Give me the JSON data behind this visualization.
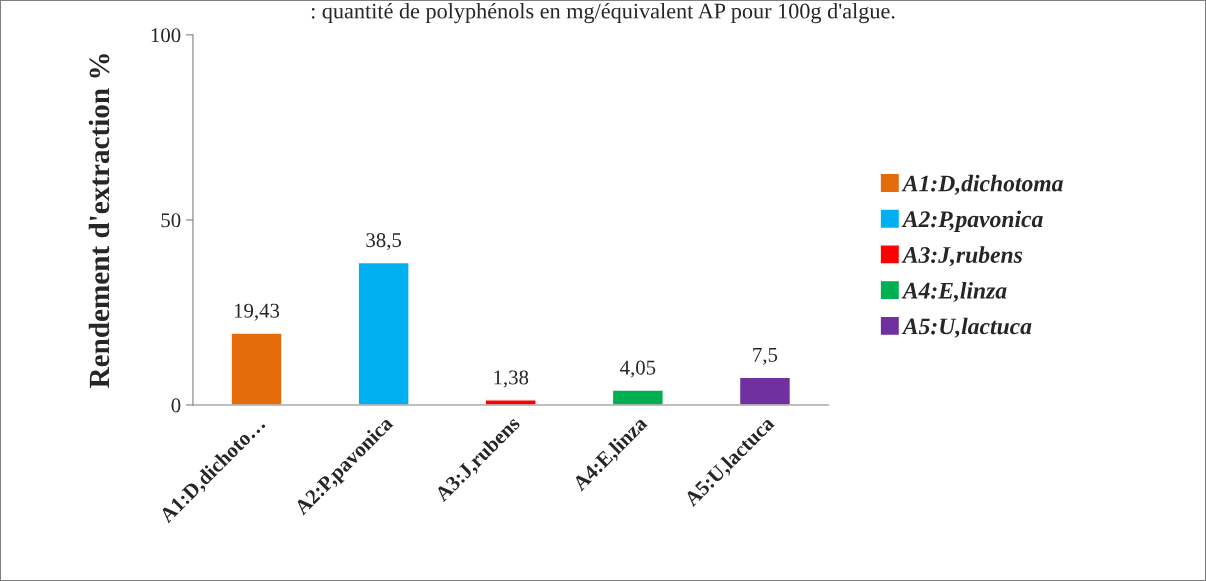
{
  "chart_data": {
    "type": "bar",
    "categories": [
      "A1:D,dichoto…",
      "A2:P,pavonica",
      "A3:J,rubens",
      "A4:E,linza",
      "A5:U,lactuca"
    ],
    "series": [
      {
        "name": "A1:D,dichotoma",
        "color": "#e46c0a",
        "values": [
          19.43,
          null,
          null,
          null,
          null
        ]
      },
      {
        "name": "A2:P,pavonica",
        "color": "#00b0f0",
        "values": [
          null,
          38.5,
          null,
          null,
          null
        ]
      },
      {
        "name": "A3:J,rubens",
        "color": "#ff0000",
        "values": [
          null,
          null,
          1.38,
          null,
          null
        ]
      },
      {
        "name": "A4:E,linza",
        "color": "#00b050",
        "values": [
          null,
          null,
          null,
          4.05,
          null
        ]
      },
      {
        "name": "A5:U,lactuca",
        "color": "#7030a0",
        "values": [
          null,
          null,
          null,
          null,
          7.5
        ]
      }
    ],
    "value_labels": [
      "19,43",
      "38,5",
      "1,38",
      "4,05",
      "7,5"
    ],
    "ylabel": "Rendement d'extraction %",
    "ylim": [
      0,
      100
    ],
    "yticks": [
      0,
      50,
      100
    ],
    "grid": false,
    "legend": "right",
    "annotations": [
      ": quantité de polyphénols en mg/équivalent AP pour 100g d'algue."
    ]
  }
}
